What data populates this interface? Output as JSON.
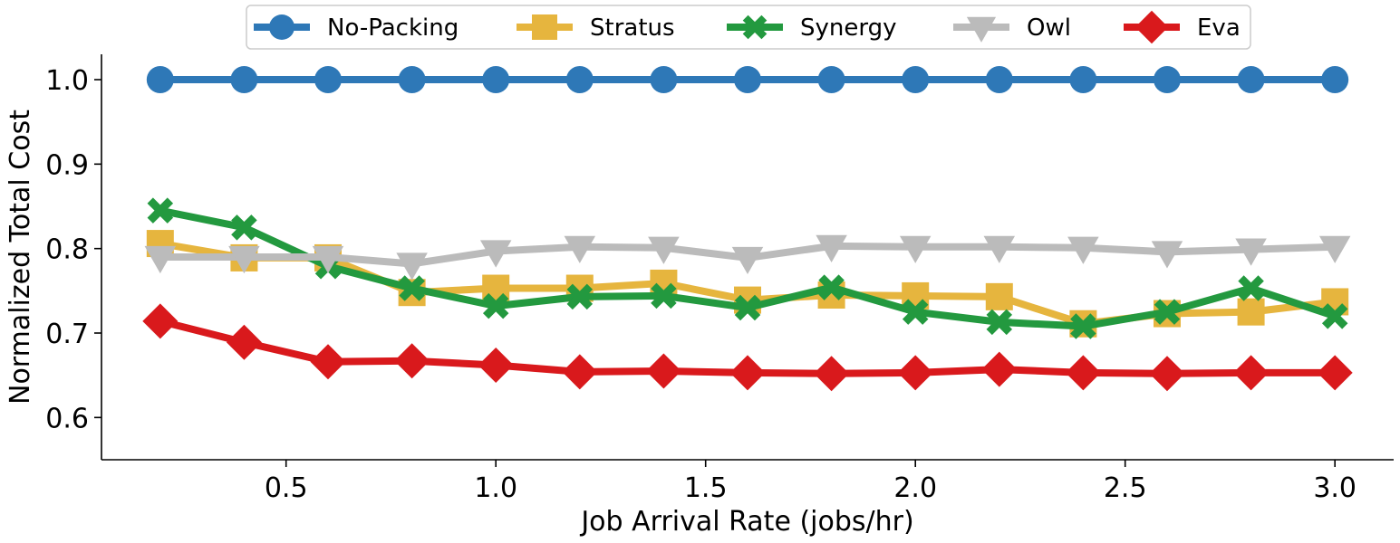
{
  "chart_data": {
    "type": "line",
    "title": "",
    "xlabel": "Job Arrival Rate (jobs/hr)",
    "ylabel": "Normalized Total Cost",
    "xlim": [
      0.06,
      3.14
    ],
    "ylim": [
      0.55,
      1.03
    ],
    "xticks": [
      0.5,
      1.0,
      1.5,
      2.0,
      2.5,
      3.0
    ],
    "xtick_labels": [
      "0.5",
      "1.0",
      "1.5",
      "2.0",
      "2.5",
      "3.0"
    ],
    "yticks": [
      0.6,
      0.7,
      0.8,
      0.9,
      1.0
    ],
    "ytick_labels": [
      "0.6",
      "0.7",
      "0.8",
      "0.9",
      "1.0"
    ],
    "grid": false,
    "legend_position": "top-center",
    "x": [
      0.2,
      0.4,
      0.6,
      0.8,
      1.0,
      1.2,
      1.4,
      1.6,
      1.8,
      2.0,
      2.2,
      2.4,
      2.6,
      2.8,
      3.0
    ],
    "series": [
      {
        "name": "No-Packing",
        "color": "#2e78b7",
        "marker": "circle",
        "values": [
          1.0,
          1.0,
          1.0,
          1.0,
          1.0,
          1.0,
          1.0,
          1.0,
          1.0,
          1.0,
          1.0,
          1.0,
          1.0,
          1.0,
          1.0
        ]
      },
      {
        "name": "Stratus",
        "color": "#e6b53e",
        "marker": "square",
        "values": [
          0.806,
          0.789,
          0.789,
          0.748,
          0.753,
          0.753,
          0.759,
          0.739,
          0.745,
          0.744,
          0.743,
          0.711,
          0.723,
          0.725,
          0.737
        ]
      },
      {
        "name": "Synergy",
        "color": "#23993f",
        "marker": "x",
        "values": [
          0.845,
          0.825,
          0.779,
          0.753,
          0.732,
          0.743,
          0.744,
          0.73,
          0.754,
          0.725,
          0.713,
          0.708,
          0.725,
          0.753,
          0.72
        ]
      },
      {
        "name": "Owl",
        "color": "#bbbbbb",
        "marker": "triangle-down",
        "values": [
          0.79,
          0.79,
          0.79,
          0.782,
          0.797,
          0.802,
          0.801,
          0.789,
          0.803,
          0.802,
          0.802,
          0.801,
          0.796,
          0.799,
          0.802
        ]
      },
      {
        "name": "Eva",
        "color": "#d9191c",
        "marker": "diamond",
        "values": [
          0.714,
          0.689,
          0.666,
          0.667,
          0.662,
          0.654,
          0.655,
          0.653,
          0.652,
          0.653,
          0.657,
          0.653,
          0.652,
          0.653,
          0.653
        ]
      }
    ]
  }
}
